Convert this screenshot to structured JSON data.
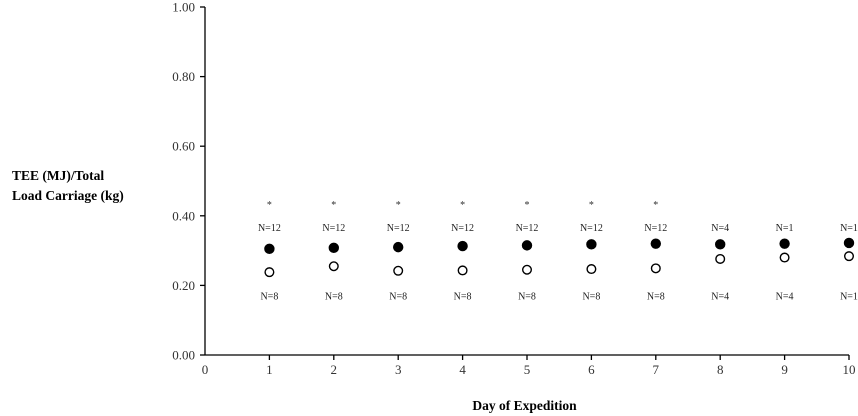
{
  "chart_data": {
    "type": "scatter",
    "xlabel": "Day of Expedition",
    "ylabel_line1": "TEE (MJ)/Total",
    "ylabel_line2": "Load Carriage (kg)",
    "xlim": [
      0,
      10
    ],
    "ylim": [
      0,
      1.0
    ],
    "x_ticks": [
      "0",
      "1",
      "2",
      "3",
      "4",
      "5",
      "6",
      "7",
      "8",
      "9",
      "10"
    ],
    "y_ticks": [
      "0.00",
      "0.20",
      "0.40",
      "0.60",
      "0.80",
      "1.00"
    ],
    "grid": false,
    "x": [
      1,
      2,
      3,
      4,
      5,
      6,
      7,
      8,
      9,
      10
    ],
    "series": [
      {
        "marker": "filled-circle",
        "values": [
          0.305,
          0.308,
          0.31,
          0.313,
          0.315,
          0.318,
          0.32,
          0.318,
          0.32,
          0.322
        ],
        "n_labels": [
          "N=12",
          "N=12",
          "N=12",
          "N=12",
          "N=12",
          "N=12",
          "N=12",
          "N=4",
          "N=1",
          "N=1"
        ]
      },
      {
        "marker": "open-circle",
        "values": [
          0.238,
          0.255,
          0.242,
          0.243,
          0.245,
          0.247,
          0.249,
          0.276,
          0.28,
          0.284
        ],
        "n_labels": [
          "N=8",
          "N=8",
          "N=8",
          "N=8",
          "N=8",
          "N=8",
          "N=8",
          "N=4",
          "N=4",
          "N=1"
        ]
      }
    ],
    "significance": [
      "*",
      "*",
      "*",
      "*",
      "*",
      "*",
      "*",
      "",
      "",
      ""
    ]
  }
}
